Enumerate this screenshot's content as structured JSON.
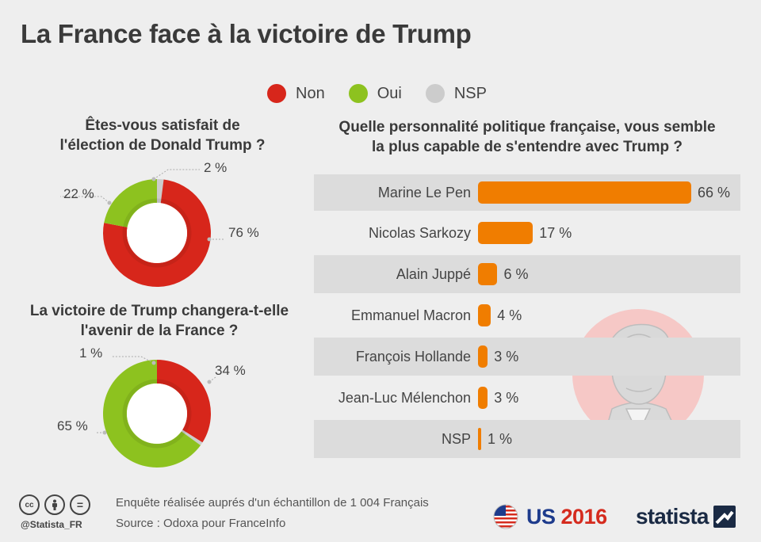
{
  "title": "La France face à la victoire de Trump",
  "legend": [
    {
      "label": "Non",
      "color": "#d7261b"
    },
    {
      "label": "Oui",
      "color": "#8dc21f"
    },
    {
      "label": "NSP",
      "color": "#cccccc"
    }
  ],
  "colors": {
    "non": "#d7261b",
    "oui": "#8dc21f",
    "nsp": "#cccccc",
    "bar": "#f07d00"
  },
  "chart_data": [
    {
      "type": "pie",
      "donut": true,
      "title": "Êtes-vous satisfait de l'élection de Donald Trump ?",
      "title_lines": [
        "Êtes-vous satisfait de",
        "l'élection de Donald Trump ?"
      ],
      "slices": [
        {
          "name": "Non",
          "value": 76,
          "label": "76 %"
        },
        {
          "name": "Oui",
          "value": 22,
          "label": "22 %"
        },
        {
          "name": "NSP",
          "value": 2,
          "label": "2 %"
        }
      ]
    },
    {
      "type": "pie",
      "donut": true,
      "title": "La victoire de Trump changera-t-elle l'avenir de la France ?",
      "title_lines": [
        "La victoire de Trump changera-t-elle",
        "l'avenir de la France ?"
      ],
      "slices": [
        {
          "name": "Non",
          "value": 34,
          "label": "34 %"
        },
        {
          "name": "Oui",
          "value": 65,
          "label": "65 %"
        },
        {
          "name": "NSP",
          "value": 1,
          "label": "1 %"
        }
      ]
    },
    {
      "type": "bar",
      "orientation": "horizontal",
      "title": "Quelle personnalité politique française, vous semble la plus capable de s'entendre avec Trump ?",
      "title_lines": [
        "Quelle personnalité politique française, vous semble",
        "la plus capable de s'entendre avec Trump ?"
      ],
      "categories": [
        "Marine Le Pen",
        "Nicolas Sarkozy",
        "Alain Juppé",
        "Emmanuel Macron",
        "François Hollande",
        "Jean-Luc Mélenchon",
        "NSP"
      ],
      "values": [
        66,
        17,
        6,
        4,
        3,
        3,
        1
      ],
      "value_labels": [
        "66 %",
        "17 %",
        "6 %",
        "4 %",
        "3 %",
        "3 %",
        "1 %"
      ],
      "xlim": [
        0,
        66
      ]
    }
  ],
  "footer": {
    "handle": "@Statista_FR",
    "note": "Enquête réalisée auprés d'un échantillon de 1 004 Français",
    "source": "Source : Odoxa pour FranceInfo",
    "event_us": "US",
    "event_year": "2016",
    "brand": "statista",
    "cc_icons": [
      "cc",
      "by",
      "="
    ]
  }
}
